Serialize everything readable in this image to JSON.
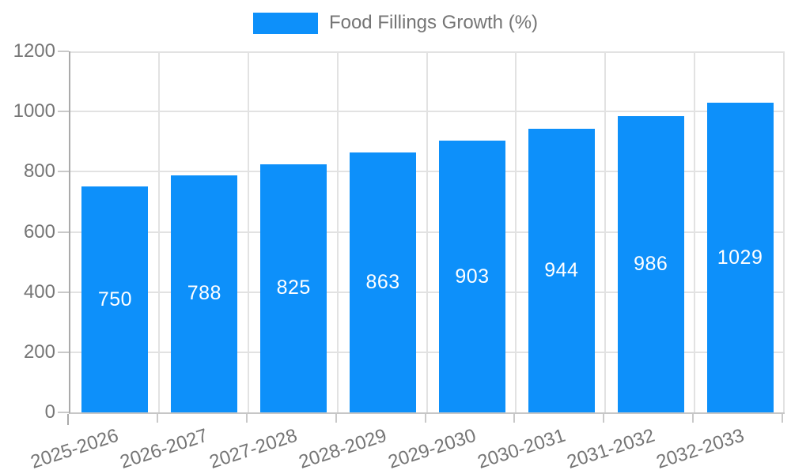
{
  "legend": {
    "label": "Food Fillings Growth (%)"
  },
  "chart_data": {
    "type": "bar",
    "title": "",
    "categories": [
      "2025-2026",
      "2026-2027",
      "2027-2028",
      "2028-2029",
      "2029-2030",
      "2030-2031",
      "2031-2032",
      "2032-2033"
    ],
    "values": [
      750,
      788,
      825,
      863,
      903,
      944,
      986,
      1029
    ],
    "series": [
      {
        "name": "Food Fillings Growth (%)",
        "values": [
          750,
          788,
          825,
          863,
          903,
          944,
          986,
          1029
        ]
      }
    ],
    "xlabel": "",
    "ylabel": "",
    "ylim": [
      0,
      1200
    ],
    "yticks": [
      0,
      200,
      400,
      600,
      800,
      1000,
      1200
    ],
    "grid": true,
    "legend_position": "top-center",
    "x_label_rotation_deg": -18,
    "bar_color": "#0d90fa",
    "value_label_color": "#ffffff",
    "text_color": "#757575",
    "gridline_color": "#e2e2e2",
    "axis_line_color": "#aaaaaa",
    "tick_color": "#c9c9c9"
  }
}
